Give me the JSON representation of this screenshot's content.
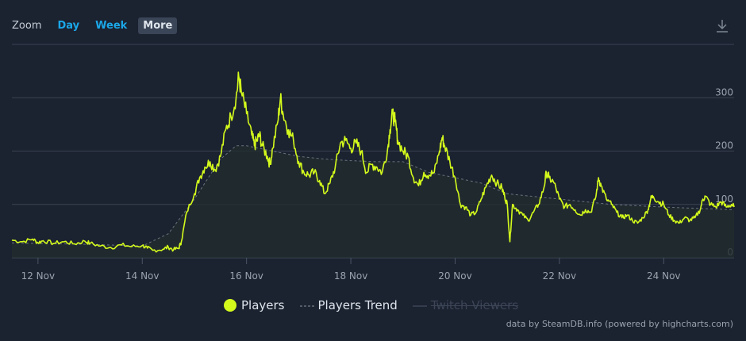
{
  "toolbar": {
    "zoom_label": "Zoom",
    "buttons": [
      "Day",
      "Week",
      "More"
    ],
    "active": "More",
    "download_icon": "download-icon"
  },
  "legend": [
    {
      "label": "Players",
      "color": "#d4fa1c",
      "symbol": "circle",
      "visible": true
    },
    {
      "label": "Players Trend",
      "color": "#8a939c",
      "symbol": "dashed-line",
      "visible": true
    },
    {
      "label": "Twitch Viewers",
      "color": "#3c4657",
      "symbol": "line",
      "visible": false
    }
  ],
  "credits": "data by SteamDB.info (powered by highcharts.com)",
  "colors": {
    "background": "#1b2230",
    "grid": "#3a4454",
    "players": "#d4fa1c",
    "trend": "#8a939c",
    "accent": "#1ba7e8"
  },
  "chart_data": {
    "type": "line",
    "x_unit": "date (Nov)",
    "x_tick_labels": [
      "12 Nov",
      "14 Nov",
      "16 Nov",
      "18 Nov",
      "20 Nov",
      "22 Nov",
      "24 Nov"
    ],
    "x_tick_values": [
      12,
      14,
      16,
      18,
      20,
      22,
      24
    ],
    "y_tick_labels": [
      "0",
      "100",
      "200",
      "300"
    ],
    "y_tick_values": [
      0,
      100,
      200,
      300
    ],
    "xlim": [
      11.5,
      25.35
    ],
    "ylim": [
      0,
      400
    ],
    "y_axis_side": "right",
    "series": [
      {
        "name": "Players",
        "color": "#d4fa1c",
        "points": [
          [
            11.5,
            33
          ],
          [
            11.7,
            30
          ],
          [
            11.9,
            35
          ],
          [
            12.0,
            28
          ],
          [
            12.1,
            32
          ],
          [
            12.3,
            27
          ],
          [
            12.5,
            30
          ],
          [
            12.7,
            26
          ],
          [
            12.9,
            31
          ],
          [
            13.0,
            27
          ],
          [
            13.2,
            22
          ],
          [
            13.4,
            19
          ],
          [
            13.6,
            24
          ],
          [
            13.8,
            21
          ],
          [
            14.0,
            23
          ],
          [
            14.1,
            18
          ],
          [
            14.2,
            14
          ],
          [
            14.4,
            16
          ],
          [
            14.5,
            20
          ],
          [
            14.6,
            15
          ],
          [
            14.7,
            18
          ],
          [
            14.75,
            30
          ],
          [
            14.85,
            85
          ],
          [
            15.0,
            120
          ],
          [
            15.1,
            150
          ],
          [
            15.2,
            170
          ],
          [
            15.3,
            180
          ],
          [
            15.4,
            165
          ],
          [
            15.5,
            190
          ],
          [
            15.6,
            240
          ],
          [
            15.7,
            265
          ],
          [
            15.8,
            300
          ],
          [
            15.85,
            340
          ],
          [
            15.9,
            310
          ],
          [
            16.0,
            270
          ],
          [
            16.1,
            230
          ],
          [
            16.15,
            210
          ],
          [
            16.2,
            220
          ],
          [
            16.25,
            230
          ],
          [
            16.3,
            210
          ],
          [
            16.4,
            190
          ],
          [
            16.45,
            175
          ],
          [
            16.5,
            205
          ],
          [
            16.6,
            255
          ],
          [
            16.65,
            300
          ],
          [
            16.7,
            270
          ],
          [
            16.8,
            240
          ],
          [
            16.9,
            220
          ],
          [
            17.0,
            180
          ],
          [
            17.1,
            160
          ],
          [
            17.2,
            155
          ],
          [
            17.3,
            160
          ],
          [
            17.4,
            145
          ],
          [
            17.5,
            120
          ],
          [
            17.6,
            140
          ],
          [
            17.7,
            170
          ],
          [
            17.8,
            215
          ],
          [
            17.9,
            220
          ],
          [
            18.0,
            205
          ],
          [
            18.1,
            215
          ],
          [
            18.2,
            200
          ],
          [
            18.3,
            160
          ],
          [
            18.4,
            175
          ],
          [
            18.5,
            170
          ],
          [
            18.6,
            160
          ],
          [
            18.7,
            200
          ],
          [
            18.75,
            240
          ],
          [
            18.8,
            270
          ],
          [
            18.85,
            255
          ],
          [
            18.9,
            220
          ],
          [
            19.0,
            200
          ],
          [
            19.1,
            190
          ],
          [
            19.2,
            150
          ],
          [
            19.3,
            135
          ],
          [
            19.4,
            160
          ],
          [
            19.5,
            155
          ],
          [
            19.6,
            160
          ],
          [
            19.7,
            200
          ],
          [
            19.75,
            225
          ],
          [
            19.8,
            210
          ],
          [
            19.9,
            180
          ],
          [
            20.0,
            150
          ],
          [
            20.1,
            100
          ],
          [
            20.2,
            95
          ],
          [
            20.3,
            80
          ],
          [
            20.4,
            85
          ],
          [
            20.5,
            110
          ],
          [
            20.6,
            135
          ],
          [
            20.7,
            155
          ],
          [
            20.8,
            140
          ],
          [
            20.9,
            130
          ],
          [
            20.95,
            115
          ],
          [
            21.0,
            100
          ],
          [
            21.05,
            30
          ],
          [
            21.1,
            100
          ],
          [
            21.2,
            90
          ],
          [
            21.3,
            80
          ],
          [
            21.4,
            70
          ],
          [
            21.5,
            85
          ],
          [
            21.6,
            100
          ],
          [
            21.7,
            130
          ],
          [
            21.75,
            160
          ],
          [
            21.8,
            150
          ],
          [
            21.9,
            140
          ],
          [
            22.0,
            110
          ],
          [
            22.1,
            95
          ],
          [
            22.2,
            100
          ],
          [
            22.3,
            90
          ],
          [
            22.4,
            80
          ],
          [
            22.5,
            90
          ],
          [
            22.6,
            85
          ],
          [
            22.7,
            115
          ],
          [
            22.75,
            150
          ],
          [
            22.8,
            135
          ],
          [
            22.9,
            110
          ],
          [
            23.0,
            100
          ],
          [
            23.1,
            85
          ],
          [
            23.2,
            75
          ],
          [
            23.3,
            80
          ],
          [
            23.4,
            70
          ],
          [
            23.5,
            65
          ],
          [
            23.6,
            75
          ],
          [
            23.7,
            90
          ],
          [
            23.75,
            110
          ],
          [
            23.8,
            115
          ],
          [
            23.9,
            105
          ],
          [
            24.0,
            100
          ],
          [
            24.1,
            80
          ],
          [
            24.2,
            70
          ],
          [
            24.3,
            65
          ],
          [
            24.4,
            75
          ],
          [
            24.5,
            70
          ],
          [
            24.6,
            75
          ],
          [
            24.7,
            90
          ],
          [
            24.75,
            110
          ],
          [
            24.8,
            115
          ],
          [
            24.9,
            100
          ],
          [
            25.0,
            95
          ],
          [
            25.1,
            105
          ],
          [
            25.2,
            95
          ],
          [
            25.3,
            100
          ],
          [
            25.35,
            95
          ]
        ]
      },
      {
        "name": "Players Trend",
        "color": "#8a939c",
        "dashed": true,
        "points": [
          [
            11.5,
            28
          ],
          [
            13.0,
            25
          ],
          [
            14.0,
            22
          ],
          [
            14.5,
            45
          ],
          [
            15.0,
            110
          ],
          [
            15.5,
            185
          ],
          [
            15.8,
            210
          ],
          [
            16.0,
            210
          ],
          [
            16.5,
            200
          ],
          [
            17.0,
            190
          ],
          [
            17.5,
            185
          ],
          [
            18.0,
            182
          ],
          [
            18.5,
            180
          ],
          [
            19.0,
            180
          ],
          [
            19.5,
            160
          ],
          [
            20.0,
            150
          ],
          [
            20.5,
            140
          ],
          [
            21.0,
            120
          ],
          [
            21.5,
            115
          ],
          [
            22.0,
            110
          ],
          [
            22.5,
            105
          ],
          [
            23.0,
            100
          ],
          [
            24.0,
            95
          ],
          [
            25.35,
            90
          ]
        ]
      }
    ]
  }
}
